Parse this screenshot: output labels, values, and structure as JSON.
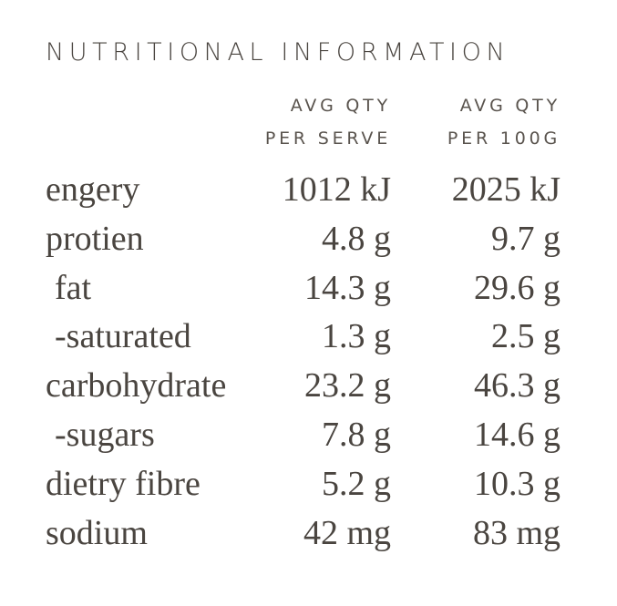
{
  "title": "NUTRITIONAL INFORMATION",
  "columns": [
    {
      "line1": "AVG QTY",
      "line2": "PER SERVE"
    },
    {
      "line1": "AVG QTY",
      "line2": "PER 100G"
    }
  ],
  "rows": [
    {
      "label": "engery",
      "per_serve": "1012 kJ",
      "per_100g": "2025 kJ"
    },
    {
      "label": "protien",
      "per_serve": "4.8 g",
      "per_100g": "9.7 g"
    },
    {
      "label": "fat",
      "per_serve": "14.3 g",
      "per_100g": "29.6 g"
    },
    {
      "label": "-saturated",
      "per_serve": "1.3 g",
      "per_100g": "2.5 g"
    },
    {
      "label": "carbohydrate",
      "per_serve": "23.2 g",
      "per_100g": "46.3 g"
    },
    {
      "label": "-sugars",
      "per_serve": "7.8 g",
      "per_100g": "14.6 g"
    },
    {
      "label": "dietry fibre",
      "per_serve": "5.2 g",
      "per_100g": "10.3 g"
    },
    {
      "label": "sodium",
      "per_serve": "42 mg",
      "per_100g": "83 mg"
    }
  ]
}
